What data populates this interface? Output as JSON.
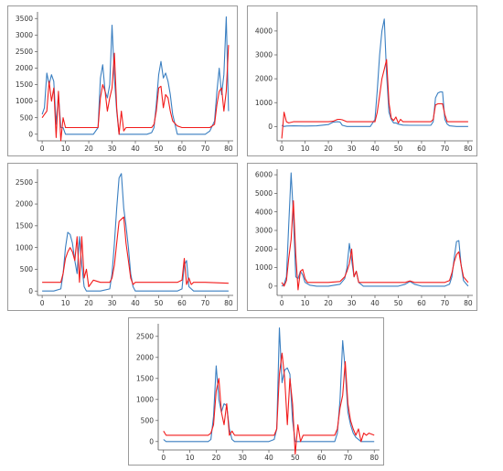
{
  "colors": {
    "blue": "#3a7fc1",
    "red": "#f21b1b",
    "axis": "#555555",
    "text": "#333333"
  },
  "chart_data": [
    {
      "type": "line",
      "title": "",
      "xlabel": "",
      "ylabel": "",
      "xlim": [
        -2,
        82
      ],
      "ylim": [
        -200,
        3700
      ],
      "xticks": [
        0,
        10,
        20,
        30,
        40,
        50,
        60,
        70,
        80
      ],
      "yticks": [
        0,
        500,
        1000,
        1500,
        2000,
        2500,
        3000,
        3500
      ],
      "grid": false,
      "series": [
        {
          "color": "blue",
          "x": [
            0,
            1,
            2,
            3,
            4,
            5,
            6,
            7,
            8,
            9,
            10,
            11,
            12,
            13,
            14,
            15,
            20,
            22,
            24,
            25,
            26,
            27,
            28,
            29,
            30,
            31,
            32,
            33,
            34,
            35,
            36,
            40,
            45,
            47,
            48,
            49,
            50,
            51,
            52,
            53,
            54,
            55,
            56,
            58,
            60,
            70,
            72,
            74,
            75,
            76,
            77,
            78,
            79,
            80
          ],
          "y": [
            600,
            800,
            1850,
            1500,
            1800,
            1600,
            300,
            1200,
            200,
            200,
            0,
            0,
            0,
            0,
            0,
            0,
            0,
            0,
            200,
            1700,
            2100,
            1300,
            1100,
            1500,
            3300,
            1700,
            700,
            0,
            0,
            0,
            0,
            0,
            0,
            50,
            200,
            900,
            1800,
            2200,
            1700,
            1850,
            1600,
            1200,
            600,
            0,
            0,
            0,
            100,
            400,
            1300,
            2000,
            1200,
            1800,
            3550,
            700
          ]
        },
        {
          "color": "red",
          "x": [
            0,
            1,
            2,
            3,
            4,
            5,
            6,
            7,
            8,
            9,
            10,
            11,
            12,
            13,
            20,
            22,
            24,
            25,
            26,
            27,
            28,
            29,
            30,
            31,
            32,
            33,
            34,
            35,
            36,
            40,
            45,
            47,
            48,
            49,
            50,
            51,
            52,
            53,
            54,
            55,
            56,
            58,
            60,
            70,
            72,
            74,
            75,
            76,
            77,
            78,
            79,
            80
          ],
          "y": [
            500,
            600,
            700,
            1600,
            1000,
            1400,
            -100,
            1300,
            -200,
            500,
            200,
            200,
            200,
            200,
            200,
            200,
            200,
            1100,
            1500,
            1300,
            700,
            1100,
            1400,
            2450,
            800,
            0,
            700,
            100,
            200,
            200,
            200,
            200,
            300,
            700,
            1400,
            1450,
            800,
            1200,
            1100,
            700,
            400,
            250,
            200,
            200,
            200,
            300,
            900,
            1300,
            1400,
            700,
            1300,
            2700
          ]
        }
      ]
    },
    {
      "type": "line",
      "title": "",
      "xlabel": "",
      "ylabel": "",
      "xlim": [
        -2,
        82
      ],
      "ylim": [
        -600,
        4800
      ],
      "xticks": [
        0,
        10,
        20,
        30,
        40,
        50,
        60,
        70,
        80
      ],
      "yticks": [
        0,
        1000,
        2000,
        3000,
        4000
      ],
      "grid": false,
      "series": [
        {
          "color": "blue",
          "x": [
            0,
            1,
            2,
            5,
            10,
            15,
            20,
            22,
            24,
            25,
            26,
            28,
            30,
            35,
            38,
            40,
            41,
            42,
            43,
            44,
            45,
            46,
            47,
            48,
            49,
            50,
            52,
            55,
            60,
            64,
            65,
            66,
            67,
            68,
            69,
            70,
            71,
            72,
            75,
            80
          ],
          "y": [
            50,
            0,
            20,
            30,
            20,
            30,
            80,
            180,
            200,
            190,
            50,
            0,
            0,
            0,
            0,
            300,
            1500,
            3000,
            4000,
            4500,
            2200,
            600,
            300,
            150,
            150,
            100,
            60,
            50,
            50,
            50,
            200,
            1200,
            1400,
            1450,
            1450,
            300,
            100,
            30,
            0,
            0
          ]
        },
        {
          "color": "red",
          "x": [
            0,
            1,
            2,
            3,
            5,
            10,
            15,
            20,
            22,
            24,
            25,
            26,
            28,
            30,
            35,
            38,
            40,
            41,
            42,
            43,
            44,
            45,
            46,
            47,
            48,
            49,
            50,
            51,
            52,
            55,
            60,
            64,
            65,
            66,
            67,
            68,
            69,
            70,
            71,
            72,
            75,
            80
          ],
          "y": [
            -500,
            600,
            200,
            150,
            200,
            200,
            200,
            200,
            220,
            300,
            300,
            280,
            200,
            200,
            200,
            200,
            200,
            600,
            1300,
            2000,
            2400,
            2800,
            1000,
            350,
            250,
            400,
            150,
            300,
            200,
            200,
            200,
            200,
            300,
            900,
            950,
            950,
            950,
            500,
            200,
            200,
            200,
            200
          ]
        }
      ]
    },
    {
      "type": "line",
      "title": "",
      "xlabel": "",
      "ylabel": "",
      "xlim": [
        -2,
        82
      ],
      "ylim": [
        -100,
        2800
      ],
      "xticks": [
        0,
        10,
        20,
        30,
        40,
        50,
        60,
        70,
        80
      ],
      "yticks": [
        0,
        500,
        1000,
        1500,
        2000,
        2500
      ],
      "grid": false,
      "series": [
        {
          "color": "blue",
          "x": [
            0,
            5,
            8,
            9,
            10,
            11,
            12,
            13,
            14,
            15,
            16,
            17,
            18,
            19,
            20,
            25,
            29,
            30,
            31,
            32,
            33,
            34,
            35,
            36,
            37,
            38,
            39,
            40,
            45,
            55,
            58,
            60,
            61,
            62,
            63,
            65,
            70,
            80
          ],
          "y": [
            0,
            0,
            50,
            400,
            1000,
            1350,
            1300,
            1100,
            700,
            400,
            1250,
            600,
            100,
            0,
            0,
            0,
            50,
            400,
            1100,
            1900,
            2600,
            2700,
            1900,
            1500,
            1000,
            400,
            100,
            0,
            0,
            0,
            0,
            50,
            600,
            700,
            100,
            0,
            0,
            0
          ]
        },
        {
          "color": "red",
          "x": [
            0,
            5,
            8,
            9,
            10,
            11,
            12,
            13,
            14,
            15,
            16,
            17,
            18,
            19,
            20,
            22,
            25,
            29,
            30,
            31,
            32,
            33,
            34,
            35,
            36,
            37,
            38,
            39,
            40,
            45,
            55,
            58,
            60,
            61,
            62,
            63,
            64,
            65,
            70,
            80
          ],
          "y": [
            200,
            200,
            200,
            400,
            750,
            900,
            1000,
            900,
            700,
            1250,
            200,
            1250,
            300,
            500,
            100,
            250,
            200,
            200,
            300,
            600,
            1100,
            1600,
            1650,
            1700,
            1100,
            700,
            300,
            150,
            200,
            200,
            200,
            200,
            250,
            750,
            150,
            300,
            150,
            200,
            200,
            180
          ]
        }
      ]
    },
    {
      "type": "line",
      "title": "",
      "xlabel": "",
      "ylabel": "",
      "xlim": [
        -2,
        82
      ],
      "ylim": [
        -500,
        6300
      ],
      "xticks": [
        0,
        10,
        20,
        30,
        40,
        50,
        60,
        70,
        80
      ],
      "yticks": [
        0,
        1000,
        2000,
        3000,
        4000,
        5000,
        6000
      ],
      "grid": false,
      "series": [
        {
          "color": "blue",
          "x": [
            0,
            1,
            2,
            3,
            4,
            5,
            6,
            7,
            8,
            9,
            10,
            12,
            15,
            20,
            25,
            27,
            28,
            29,
            30,
            31,
            32,
            33,
            34,
            35,
            40,
            45,
            50,
            53,
            55,
            57,
            60,
            65,
            70,
            72,
            73,
            74,
            75,
            76,
            77,
            78,
            80
          ],
          "y": [
            0,
            100,
            500,
            3300,
            6100,
            3800,
            500,
            400,
            800,
            600,
            200,
            50,
            0,
            0,
            100,
            400,
            1000,
            2300,
            1400,
            500,
            800,
            200,
            100,
            0,
            0,
            0,
            0,
            100,
            250,
            100,
            0,
            0,
            0,
            100,
            500,
            1500,
            2400,
            2450,
            1100,
            300,
            0
          ]
        },
        {
          "color": "red",
          "x": [
            0,
            1,
            2,
            3,
            4,
            5,
            6,
            7,
            8,
            9,
            10,
            11,
            12,
            15,
            20,
            25,
            27,
            28,
            29,
            30,
            31,
            32,
            33,
            34,
            35,
            40,
            45,
            50,
            53,
            55,
            57,
            60,
            65,
            70,
            72,
            73,
            74,
            75,
            76,
            77,
            78,
            80
          ],
          "y": [
            200,
            0,
            300,
            1500,
            2500,
            4600,
            1700,
            -200,
            800,
            900,
            400,
            200,
            200,
            200,
            200,
            250,
            500,
            800,
            1200,
            2000,
            500,
            800,
            200,
            200,
            200,
            200,
            200,
            200,
            200,
            280,
            200,
            200,
            200,
            200,
            300,
            700,
            1300,
            1700,
            1850,
            1100,
            500,
            200
          ]
        }
      ]
    },
    {
      "type": "line",
      "title": "",
      "xlabel": "",
      "ylabel": "",
      "xlim": [
        -2,
        82
      ],
      "ylim": [
        -200,
        2800
      ],
      "xticks": [
        0,
        10,
        20,
        30,
        40,
        50,
        60,
        70,
        80
      ],
      "yticks": [
        0,
        500,
        1000,
        1500,
        2000,
        2500
      ],
      "grid": false,
      "series": [
        {
          "color": "blue",
          "x": [
            0,
            1,
            5,
            10,
            15,
            17,
            18,
            19,
            20,
            21,
            22,
            23,
            24,
            25,
            26,
            27,
            30,
            35,
            40,
            42,
            43,
            44,
            45,
            46,
            47,
            48,
            49,
            50,
            52,
            55,
            60,
            65,
            66,
            67,
            68,
            69,
            70,
            71,
            72,
            73,
            75,
            80
          ],
          "y": [
            50,
            0,
            0,
            0,
            0,
            0,
            50,
            600,
            1800,
            1000,
            700,
            900,
            850,
            300,
            50,
            0,
            0,
            0,
            0,
            50,
            300,
            2700,
            1400,
            1700,
            1750,
            1600,
            500,
            0,
            0,
            0,
            0,
            0,
            200,
            1000,
            2400,
            1700,
            700,
            400,
            200,
            100,
            0,
            0
          ]
        },
        {
          "color": "red",
          "x": [
            0,
            1,
            5,
            10,
            15,
            17,
            18,
            19,
            20,
            21,
            22,
            23,
            24,
            25,
            26,
            27,
            30,
            35,
            40,
            42,
            43,
            44,
            45,
            46,
            47,
            48,
            49,
            50,
            51,
            52,
            53,
            55,
            60,
            65,
            66,
            67,
            68,
            69,
            70,
            71,
            72,
            73,
            74,
            75,
            76,
            77,
            78,
            80
          ],
          "y": [
            250,
            150,
            150,
            150,
            150,
            150,
            200,
            400,
            1200,
            1500,
            700,
            400,
            900,
            150,
            250,
            150,
            150,
            150,
            150,
            150,
            300,
            1600,
            2100,
            1500,
            400,
            1500,
            900,
            -300,
            400,
            0,
            150,
            150,
            150,
            150,
            300,
            800,
            1100,
            1900,
            900,
            500,
            300,
            150,
            300,
            0,
            200,
            150,
            200,
            150
          ]
        }
      ]
    }
  ]
}
